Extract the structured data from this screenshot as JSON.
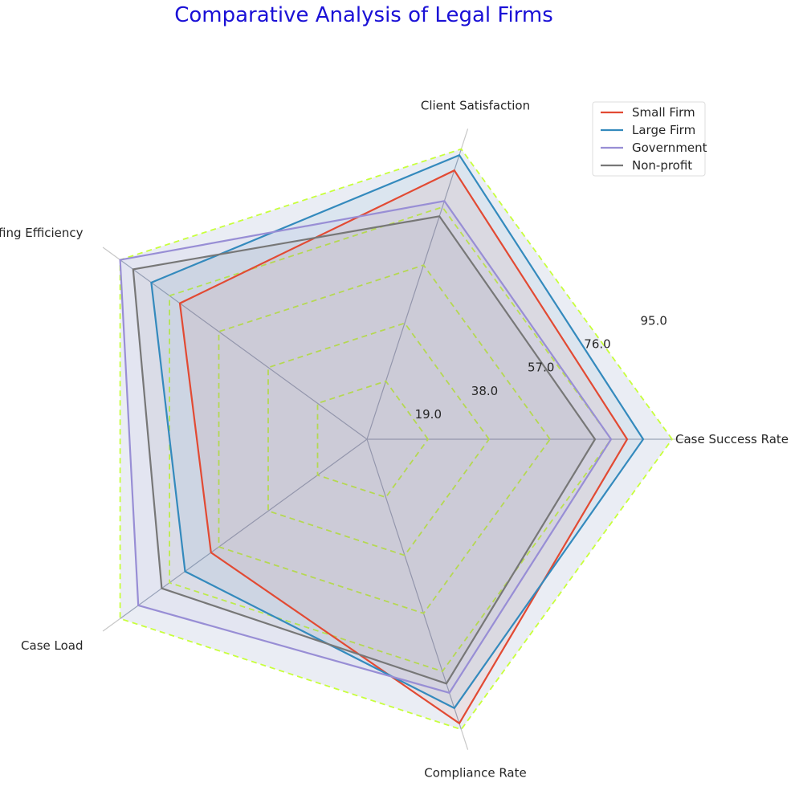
{
  "chart_data": {
    "type": "radar",
    "title": "Comparative Analysis of Legal Firms",
    "axes": [
      "Case Success Rate",
      "Client Satisfaction",
      "Staffing Efficiency",
      "Case Load",
      "Compliance Rate"
    ],
    "radial_ticks": [
      "19.0",
      "38.0",
      "57.0",
      "76.0",
      "95.0"
    ],
    "rlim": [
      0,
      95
    ],
    "grid": true,
    "legend_position": "top-right",
    "series": [
      {
        "name": "Small Firm",
        "values": [
          81,
          88,
          72,
          60,
          93
        ],
        "color": "#e24a33"
      },
      {
        "name": "Large Firm",
        "values": [
          86,
          93,
          83,
          70,
          88
        ],
        "color": "#348abd"
      },
      {
        "name": "Government",
        "values": [
          76,
          78,
          95,
          88,
          83
        ],
        "color": "#988ed5"
      },
      {
        "name": "Non-profit",
        "values": [
          71,
          73,
          90,
          79,
          80
        ],
        "color": "#777777"
      }
    ]
  }
}
